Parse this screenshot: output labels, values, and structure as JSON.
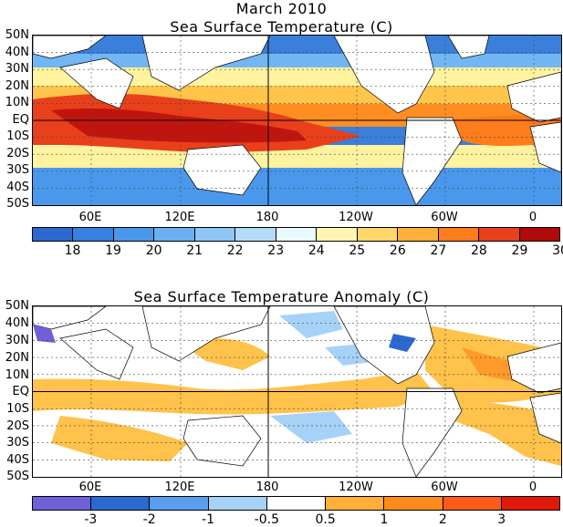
{
  "header": {
    "date": "March 2010"
  },
  "top_panel": {
    "title": "Sea Surface Temperature (C)",
    "lat_labels": [
      "50N",
      "40N",
      "30N",
      "20N",
      "10N",
      "EQ",
      "10S",
      "20S",
      "30S",
      "40S",
      "50S"
    ],
    "lon_labels": [
      "60E",
      "120E",
      "180",
      "120W",
      "60W",
      "0"
    ],
    "colorbar": {
      "colors": [
        "#2a6ad0",
        "#3580e0",
        "#4a98ec",
        "#6ab0f2",
        "#8fc6f6",
        "#b4dcf9",
        "#e9fbff",
        "#fff4b0",
        "#ffd66a",
        "#ffb03a",
        "#ff7c1a",
        "#e8401a",
        "#b00a0a"
      ],
      "labels": [
        "18",
        "19",
        "20",
        "21",
        "22",
        "23",
        "24",
        "25",
        "26",
        "27",
        "28",
        "29",
        "30"
      ]
    }
  },
  "bottom_panel": {
    "title": "Sea Surface Temperature Anomaly (C)",
    "lat_labels": [
      "50N",
      "40N",
      "30N",
      "20N",
      "10N",
      "EQ",
      "10S",
      "20S",
      "30S",
      "40S",
      "50S"
    ],
    "lon_labels": [
      "60E",
      "120E",
      "180",
      "120W",
      "60W",
      "0"
    ],
    "colorbar": {
      "colors": [
        "#7060d8",
        "#2a6ad0",
        "#5a9cee",
        "#a6d2f8",
        "#ffffff",
        "#ffb03a",
        "#ff8c1a",
        "#ff5a1a",
        "#e01a0a"
      ],
      "labels": [
        "-3",
        "-2",
        "-1",
        "-0.5",
        "0.5",
        "1",
        "2",
        "3"
      ]
    }
  }
}
